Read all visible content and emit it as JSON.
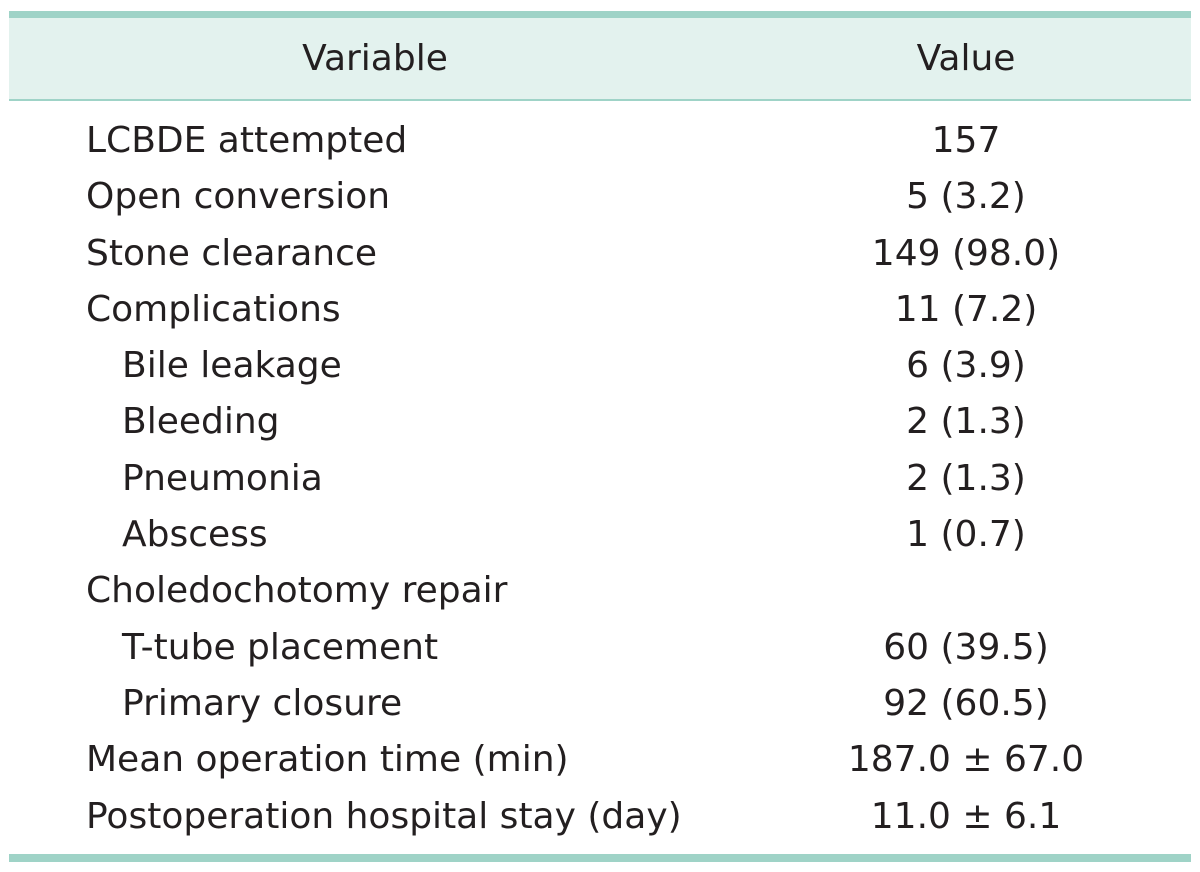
{
  "header": {
    "variable_label": "Variable",
    "value_label": "Value"
  },
  "rows": [
    {
      "variable": "LCBDE attempted",
      "value": "157",
      "indent": false
    },
    {
      "variable": "Open conversion",
      "value": "5 (3.2)",
      "indent": false
    },
    {
      "variable": "Stone clearance",
      "value": "149 (98.0)",
      "indent": false
    },
    {
      "variable": "Complications",
      "value": "11 (7.2)",
      "indent": false
    },
    {
      "variable": "Bile leakage",
      "value": "6 (3.9)",
      "indent": true
    },
    {
      "variable": "Bleeding",
      "value": "2 (1.3)",
      "indent": true
    },
    {
      "variable": "Pneumonia",
      "value": "2 (1.3)",
      "indent": true
    },
    {
      "variable": "Abscess",
      "value": "1 (0.7)",
      "indent": true
    },
    {
      "variable": "Choledochotomy repair",
      "value": "",
      "indent": false
    },
    {
      "variable": "T-tube placement",
      "value": "60 (39.5)",
      "indent": true
    },
    {
      "variable": "Primary closure",
      "value": "92 (60.5)",
      "indent": true
    },
    {
      "variable": "Mean operation time (min)",
      "value": "187.0 ± 67.0",
      "indent": false
    },
    {
      "variable": "Postoperation hospital stay (day)",
      "value": "11.0 ± 6.1",
      "indent": false
    }
  ],
  "colors": {
    "rule": "#9fd3c7",
    "header_bg": "#e3f2ee",
    "text": "#231f20"
  }
}
